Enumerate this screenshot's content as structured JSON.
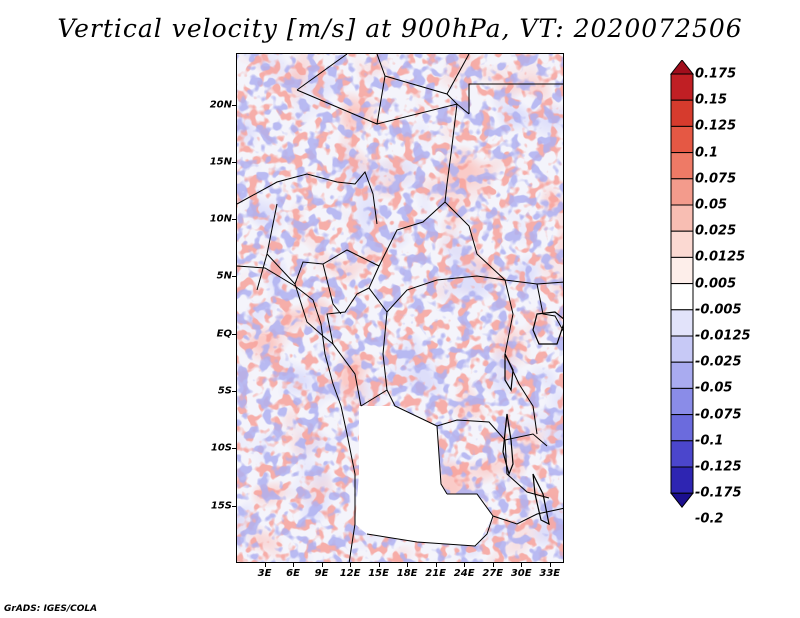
{
  "title": "Vertical velocity [m/s] at 900hPa, VT: 2020072506",
  "credit": "GrADS: IGES/COLA",
  "map": {
    "lat_labels": [
      "20N",
      "15N",
      "10N",
      "5N",
      "EQ",
      "5S",
      "10S",
      "15S"
    ],
    "lat_values": [
      20,
      15,
      10,
      5,
      0,
      -5,
      -10,
      -15
    ],
    "lon_labels": [
      "3E",
      "6E",
      "9E",
      "12E",
      "15E",
      "18E",
      "21E",
      "24E",
      "27E",
      "30E",
      "33E"
    ],
    "lon_values": [
      3,
      6,
      9,
      12,
      15,
      18,
      21,
      24,
      27,
      30,
      33
    ],
    "lon_range": [
      0,
      34.5
    ],
    "lat_range": [
      -20,
      24.5
    ]
  },
  "colorbar": {
    "labels": [
      "0.175",
      "0.15",
      "0.125",
      "0.1",
      "0.075",
      "0.05",
      "0.025",
      "0.0125",
      "0.005",
      "-0.005",
      "-0.0125",
      "-0.025",
      "-0.05",
      "-0.075",
      "-0.1",
      "-0.125",
      "-0.175",
      "-0.2"
    ],
    "colors": [
      "#a10e1c",
      "#c01f24",
      "#d63b2d",
      "#e55844",
      "#ee7a66",
      "#f39b8c",
      "#f8beb3",
      "#fbd9d2",
      "#fdeeea",
      "#ffffff",
      "#e2e3fa",
      "#c7c9f6",
      "#a9abf0",
      "#8a8ce8",
      "#6b6bdd",
      "#4b46cc",
      "#2e25b2",
      "#1b0f8e"
    ]
  },
  "colors": {
    "positive": "#ee5a52",
    "negative": "#6d6fe0",
    "border": "#000000"
  }
}
